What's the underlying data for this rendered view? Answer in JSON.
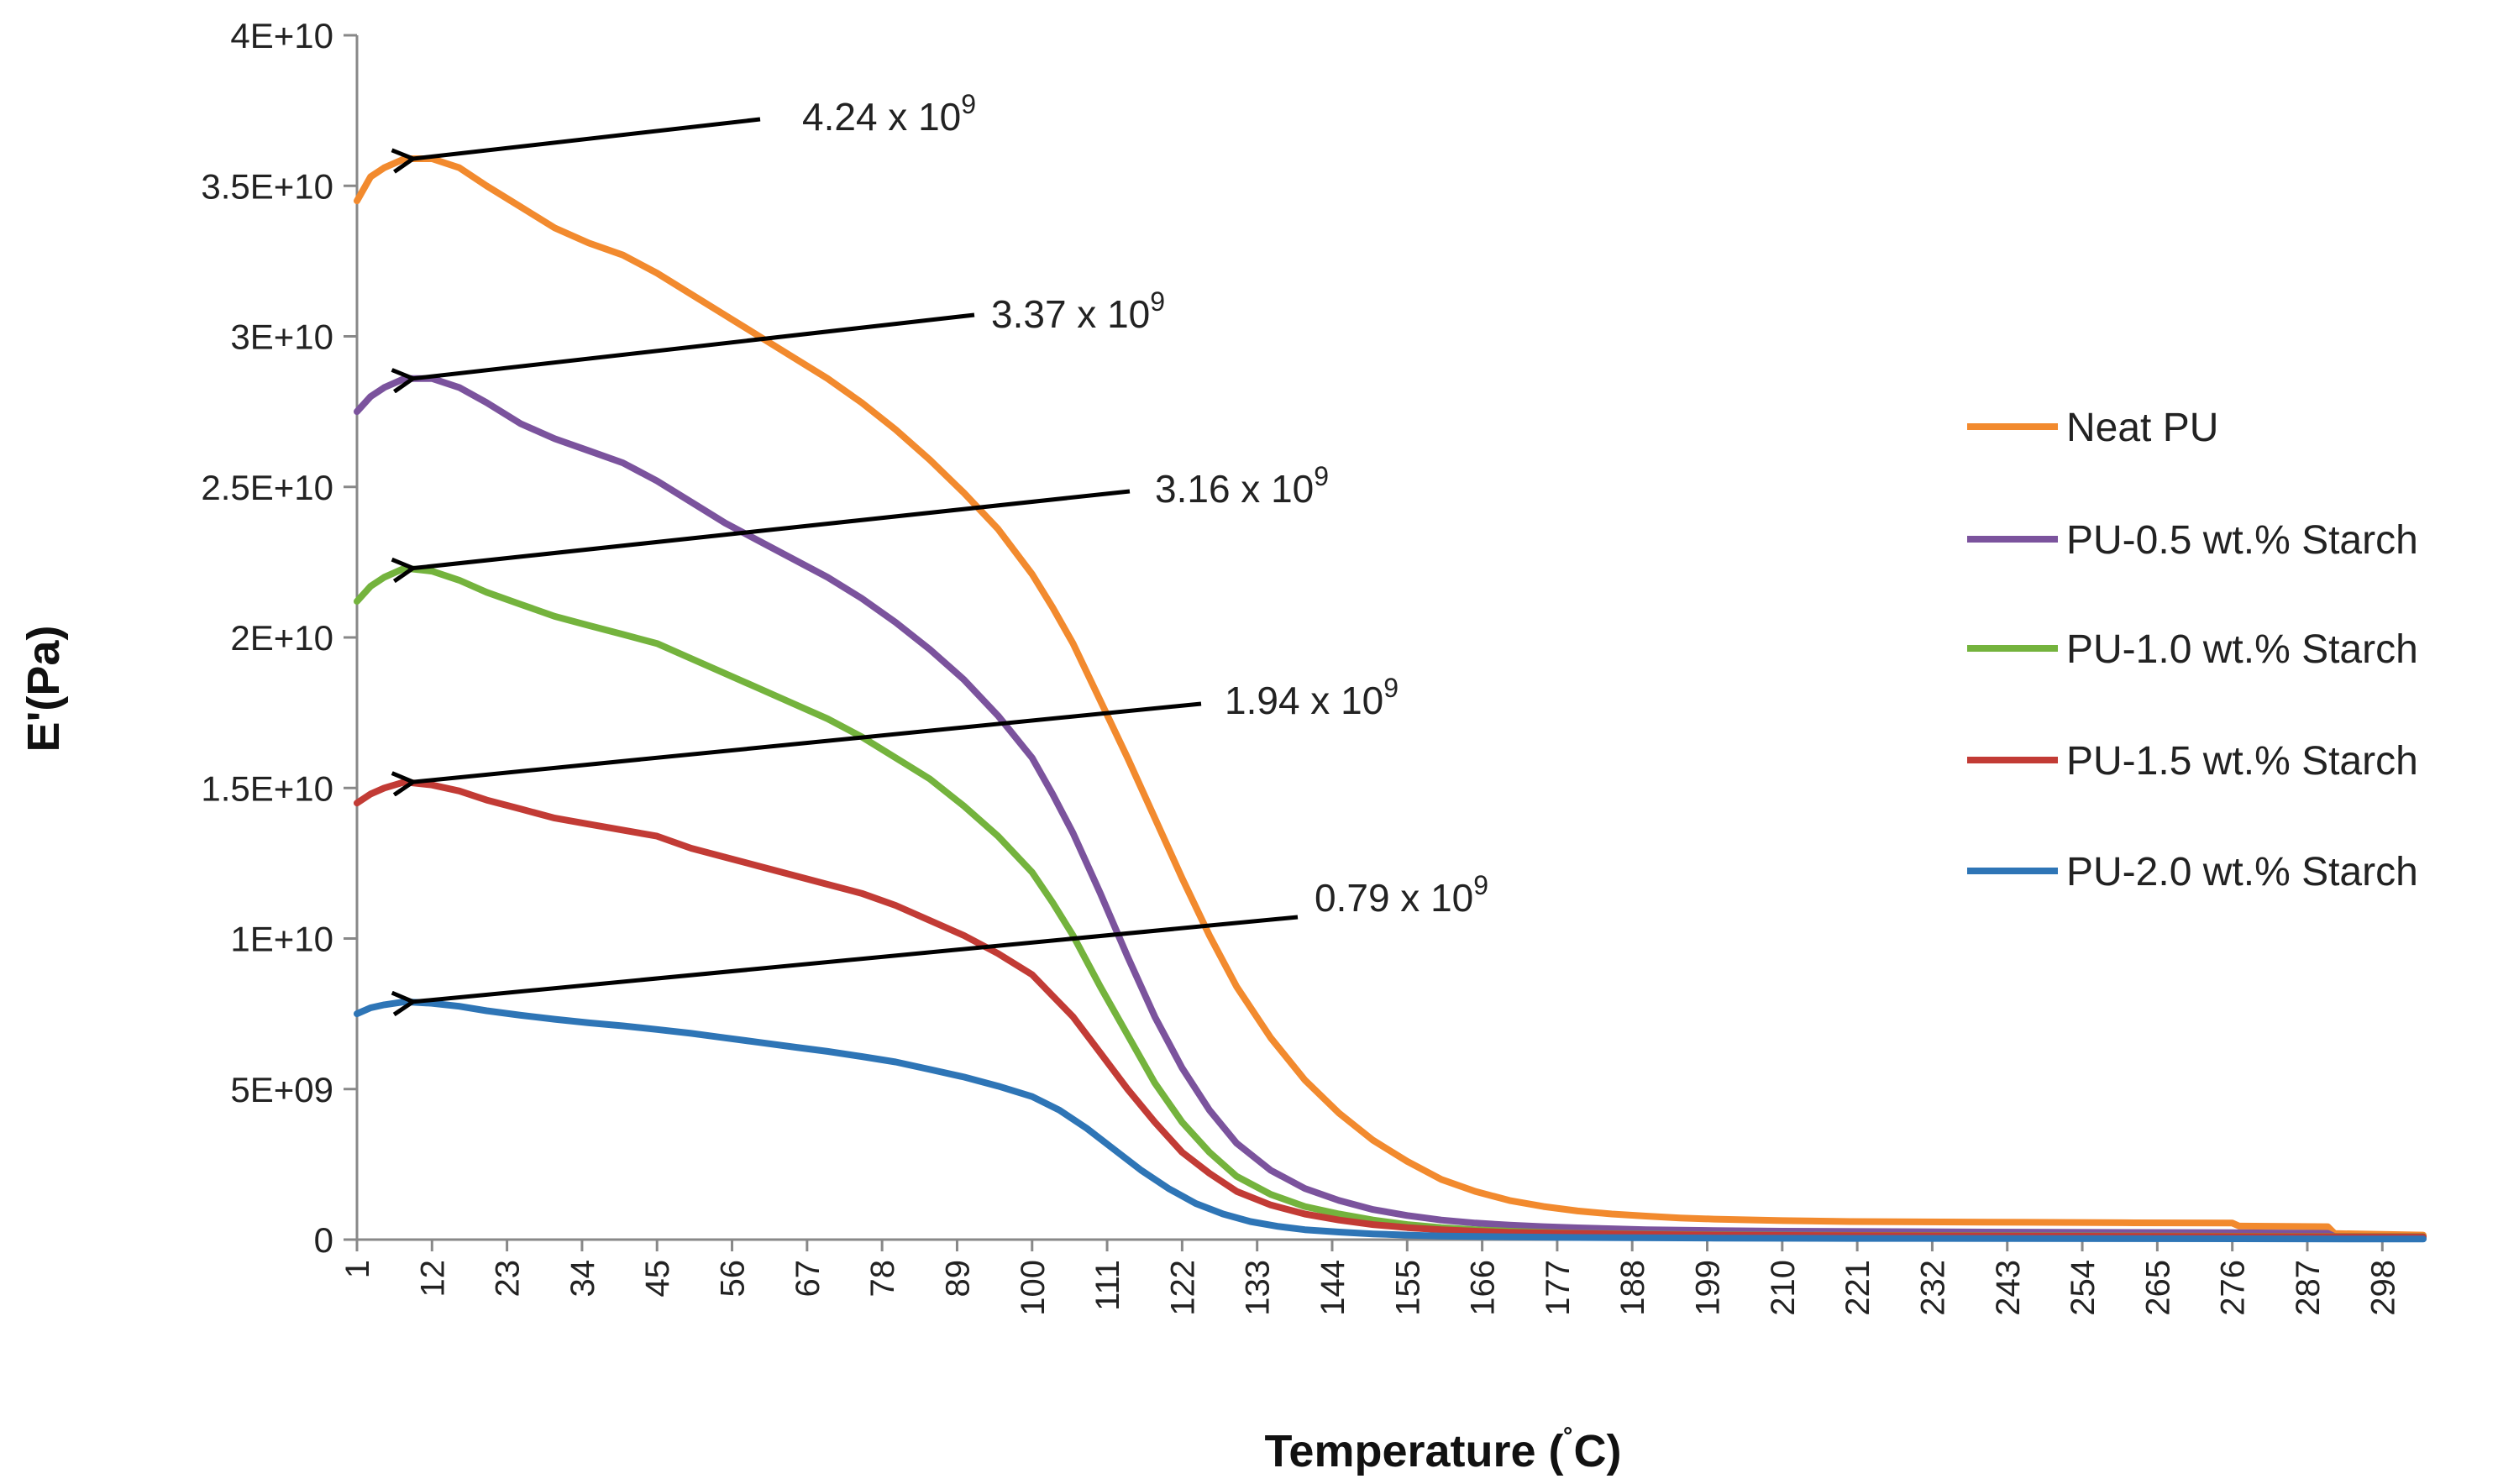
{
  "chart_data": {
    "type": "line",
    "title": "",
    "xlabel": "Temperature (˚C)",
    "xlabel_main": "Temperature (",
    "xlabel_degree": "˚",
    "xlabel_unit": "C)",
    "ylabel": "E'(Pa)",
    "ylim": [
      0,
      40000000000
    ],
    "xlim": [
      1,
      304
    ],
    "grid": false,
    "legend_position": "right",
    "y_ticks": [
      {
        "value": 0,
        "label": "0"
      },
      {
        "value": 5000000000,
        "label": "5E+09"
      },
      {
        "value": 10000000000,
        "label": "1E+10"
      },
      {
        "value": 15000000000,
        "label": "1.5E+10"
      },
      {
        "value": 20000000000,
        "label": "2E+10"
      },
      {
        "value": 25000000000,
        "label": "2.5E+10"
      },
      {
        "value": 30000000000,
        "label": "3E+10"
      },
      {
        "value": 35000000000,
        "label": "3.5E+10"
      },
      {
        "value": 40000000000,
        "label": "4E+10"
      }
    ],
    "x_ticks": [
      "1",
      "12",
      "23",
      "34",
      "45",
      "56",
      "67",
      "78",
      "89",
      "100",
      "111",
      "122",
      "133",
      "144",
      "155",
      "166",
      "177",
      "188",
      "199",
      "210",
      "221",
      "232",
      "243",
      "254",
      "265",
      "276",
      "287",
      "298"
    ],
    "series": [
      {
        "name": "Neat PU",
        "color": "#F28A2E",
        "x": [
          1,
          3,
          5,
          8,
          12,
          16,
          20,
          25,
          30,
          35,
          40,
          45,
          50,
          55,
          60,
          65,
          70,
          75,
          80,
          85,
          90,
          95,
          100,
          103,
          106,
          110,
          114,
          118,
          122,
          126,
          130,
          135,
          140,
          145,
          150,
          155,
          160,
          165,
          170,
          175,
          180,
          185,
          190,
          195,
          200,
          210,
          220,
          240,
          260,
          276,
          277,
          290,
          291,
          304
        ],
        "values": [
          34500000000.0,
          35300000000.0,
          35600000000.0,
          35900000000.0,
          35900000000.0,
          35600000000.0,
          35000000000.0,
          34300000000.0,
          33600000000.0,
          33100000000.0,
          32700000000.0,
          32100000000.0,
          31400000000.0,
          30700000000.0,
          30000000000.0,
          29300000000.0,
          28600000000.0,
          27800000000.0,
          26900000000.0,
          25900000000.0,
          24800000000.0,
          23600000000.0,
          22100000000.0,
          21000000000.0,
          19800000000.0,
          17900000000.0,
          16000000000.0,
          14000000000.0,
          12000000000.0,
          10100000000.0,
          8400000000.0,
          6700000000.0,
          5300000000.0,
          4200000000.0,
          3300000000.0,
          2600000000.0,
          2000000000.0,
          1600000000.0,
          1300000000.0,
          1100000000.0,
          950000000.0,
          850000000.0,
          780000000.0,
          720000000.0,
          680000000.0,
          630000000.0,
          600000000.0,
          580000000.0,
          560000000.0,
          550000000.0,
          450000000.0,
          430000000.0,
          200000000.0,
          150000000.0
        ]
      },
      {
        "name": "PU-0.5 wt.% Starch",
        "color": "#7B539D",
        "x": [
          1,
          3,
          5,
          8,
          12,
          16,
          20,
          25,
          30,
          35,
          40,
          45,
          50,
          55,
          60,
          65,
          70,
          75,
          80,
          85,
          90,
          95,
          100,
          103,
          106,
          110,
          114,
          118,
          122,
          126,
          130,
          135,
          140,
          145,
          150,
          155,
          160,
          165,
          170,
          175,
          180,
          185,
          190,
          200,
          210,
          240,
          276,
          290,
          291,
          304
        ],
        "values": [
          27500000000.0,
          28000000000.0,
          28300000000.0,
          28600000000.0,
          28600000000.0,
          28300000000.0,
          27800000000.0,
          27100000000.0,
          26600000000.0,
          26200000000.0,
          25800000000.0,
          25200000000.0,
          24500000000.0,
          23800000000.0,
          23200000000.0,
          22600000000.0,
          22000000000.0,
          21300000000.0,
          20500000000.0,
          19600000000.0,
          18600000000.0,
          17400000000.0,
          16000000000.0,
          14800000000.0,
          13500000000.0,
          11500000000.0,
          9400000000.0,
          7400000000.0,
          5700000000.0,
          4300000000.0,
          3200000000.0,
          2300000000.0,
          1700000000.0,
          1300000000.0,
          1000000000.0,
          800000000.0,
          650000000.0,
          550000000.0,
          480000000.0,
          430000000.0,
          390000000.0,
          360000000.0,
          330000000.0,
          300000000.0,
          280000000.0,
          250000000.0,
          230000000.0,
          210000000.0,
          100000000.0,
          80000000.0
        ]
      },
      {
        "name": "PU-1.0 wt.% Starch",
        "color": "#74B33D",
        "x": [
          1,
          3,
          5,
          8,
          12,
          16,
          20,
          25,
          30,
          35,
          40,
          45,
          50,
          55,
          60,
          65,
          70,
          75,
          80,
          85,
          90,
          95,
          100,
          103,
          106,
          110,
          114,
          118,
          122,
          126,
          130,
          135,
          140,
          145,
          150,
          155,
          160,
          165,
          170,
          175,
          180,
          190,
          200,
          220,
          260,
          304
        ],
        "values": [
          21200000000.0,
          21700000000.0,
          22000000000.0,
          22300000000.0,
          22200000000.0,
          21900000000.0,
          21500000000.0,
          21100000000.0,
          20700000000.0,
          20400000000.0,
          20100000000.0,
          19800000000.0,
          19300000000.0,
          18800000000.0,
          18300000000.0,
          17800000000.0,
          17300000000.0,
          16700000000.0,
          16000000000.0,
          15300000000.0,
          14400000000.0,
          13400000000.0,
          12200000000.0,
          11200000000.0,
          10100000000.0,
          8400000000.0,
          6800000000.0,
          5200000000.0,
          3900000000.0,
          2900000000.0,
          2100000000.0,
          1500000000.0,
          1100000000.0,
          850000000.0,
          650000000.0,
          500000000.0,
          400000000.0,
          330000000.0,
          280000000.0,
          240000000.0,
          210000000.0,
          180000000.0,
          160000000.0,
          140000000.0,
          120000000.0,
          100000000.0
        ]
      },
      {
        "name": "PU-1.5 wt.% Starch",
        "color": "#C23B35",
        "x": [
          1,
          3,
          5,
          8,
          12,
          16,
          20,
          25,
          30,
          35,
          40,
          45,
          50,
          55,
          60,
          65,
          70,
          75,
          80,
          85,
          90,
          95,
          100,
          103,
          106,
          110,
          114,
          118,
          122,
          126,
          130,
          135,
          140,
          145,
          150,
          155,
          160,
          165,
          170,
          180,
          190,
          200,
          220,
          260,
          304
        ],
        "values": [
          14500000000.0,
          14800000000.0,
          15000000000.0,
          15200000000.0,
          15100000000.0,
          14900000000.0,
          14600000000.0,
          14300000000.0,
          14000000000.0,
          13800000000.0,
          13600000000.0,
          13400000000.0,
          13000000000.0,
          12700000000.0,
          12400000000.0,
          12100000000.0,
          11800000000.0,
          11500000000.0,
          11100000000.0,
          10600000000.0,
          10100000000.0,
          9500000000.0,
          8800000000.0,
          8100000000.0,
          7400000000.0,
          6200000000.0,
          5000000000.0,
          3900000000.0,
          2900000000.0,
          2200000000.0,
          1600000000.0,
          1150000000.0,
          850000000.0,
          650000000.0,
          500000000.0,
          400000000.0,
          330000000.0,
          280000000.0,
          240000000.0,
          200000000.0,
          170000000.0,
          150000000.0,
          130000000.0,
          110000000.0,
          90000000.0
        ]
      },
      {
        "name": "PU-2.0 wt.% Starch",
        "color": "#2E75B6",
        "x": [
          1,
          3,
          5,
          8,
          12,
          16,
          20,
          25,
          30,
          35,
          40,
          45,
          50,
          55,
          60,
          65,
          70,
          75,
          80,
          85,
          90,
          95,
          100,
          104,
          108,
          112,
          116,
          120,
          124,
          128,
          132,
          136,
          140,
          145,
          150,
          155,
          160,
          170,
          180,
          200,
          220,
          260,
          304
        ],
        "values": [
          7500000000.0,
          7700000000.0,
          7800000000.0,
          7900000000.0,
          7850000000.0,
          7750000000.0,
          7600000000.0,
          7450000000.0,
          7320000000.0,
          7200000000.0,
          7100000000.0,
          6980000000.0,
          6850000000.0,
          6700000000.0,
          6550000000.0,
          6400000000.0,
          6250000000.0,
          6080000000.0,
          5900000000.0,
          5650000000.0,
          5400000000.0,
          5100000000.0,
          4750000000.0,
          4300000000.0,
          3700000000.0,
          3000000000.0,
          2300000000.0,
          1700000000.0,
          1200000000.0,
          850000000.0,
          600000000.0,
          440000000.0,
          330000000.0,
          250000000.0,
          190000000.0,
          150000000.0,
          120000000.0,
          90000000.0,
          70000000.0,
          50000000.0,
          40000000.0,
          30000000.0,
          20000000.0
        ]
      }
    ],
    "annotations": [
      {
        "text": "4.24 x 10",
        "sup": "9",
        "series": "Neat PU",
        "point_x": 8,
        "point_y": 35900000000.0
      },
      {
        "text": "3.37 x 10",
        "sup": "9",
        "series": "PU-0.5 wt.% Starch",
        "point_x": 8,
        "point_y": 28600000000.0
      },
      {
        "text": "3.16 x 10",
        "sup": "9",
        "series": "PU-1.0 wt.% Starch",
        "point_x": 8,
        "point_y": 22300000000.0
      },
      {
        "text": "1.94 x 10",
        "sup": "9",
        "series": "PU-1.5 wt.% Starch",
        "point_x": 8,
        "point_y": 15200000000.0
      },
      {
        "text": "0.79 x 10",
        "sup": "9",
        "series": "PU-2.0 wt.% Starch",
        "point_x": 8,
        "point_y": 7900000000.0
      }
    ]
  }
}
